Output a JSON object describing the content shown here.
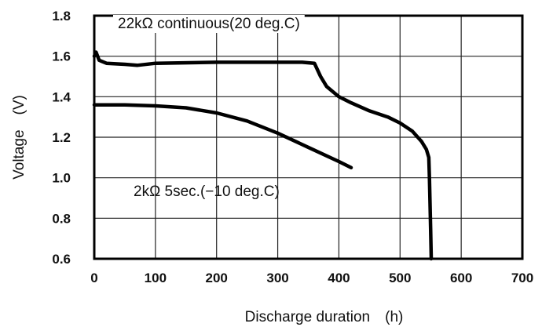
{
  "chart_data": {
    "type": "line",
    "title": "",
    "xlabel": "Discharge duration　(h)",
    "ylabel": "Voltage　(V)",
    "xlim": [
      0,
      700
    ],
    "ylim": [
      0.6,
      1.8
    ],
    "xticks": [
      "0",
      "100",
      "200",
      "300",
      "400",
      "500",
      "600",
      "700"
    ],
    "yticks": [
      "0.6",
      "0.8",
      "1.0",
      "1.2",
      "1.4",
      "1.6",
      "1.8"
    ],
    "grid": true,
    "legend": "none",
    "series": [
      {
        "name": "22kΩ continuous(20 deg.C)",
        "x": [
          0,
          3,
          8,
          20,
          50,
          70,
          100,
          200,
          300,
          340,
          360,
          370,
          380,
          400,
          420,
          450,
          480,
          500,
          520,
          535,
          543,
          547,
          548,
          550,
          551
        ],
        "y": [
          1.6,
          1.62,
          1.58,
          1.565,
          1.56,
          1.555,
          1.565,
          1.57,
          1.57,
          1.57,
          1.565,
          1.5,
          1.45,
          1.4,
          1.37,
          1.33,
          1.3,
          1.27,
          1.23,
          1.18,
          1.14,
          1.1,
          1.0,
          0.75,
          0.6
        ]
      },
      {
        "name": "2kΩ 5sec.(−10 deg.C)",
        "x": [
          0,
          50,
          100,
          150,
          200,
          250,
          300,
          350,
          400,
          420
        ],
        "y": [
          1.36,
          1.36,
          1.355,
          1.345,
          1.32,
          1.28,
          1.22,
          1.15,
          1.08,
          1.05
        ]
      }
    ],
    "annotations": [
      {
        "text": "22kΩ continuous(20 deg.C)",
        "series": 0
      },
      {
        "text": "2kΩ 5sec.(−10 deg.C)",
        "series": 1
      }
    ]
  }
}
